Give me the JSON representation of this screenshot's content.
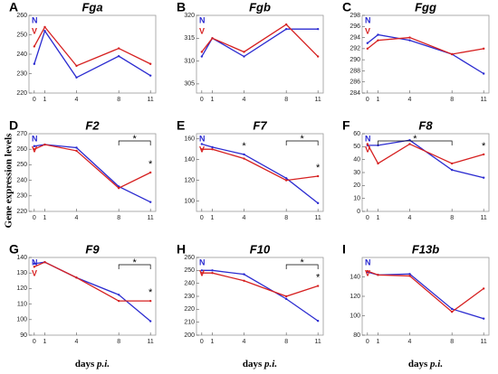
{
  "figure": {
    "ylabel": "Gene expression levels",
    "xlabel_main": "days",
    "xlabel_italic": "p.i."
  },
  "chart_data": [
    {
      "type": "line",
      "panel": "A",
      "title": "Fga",
      "x": [
        0,
        1,
        4,
        8,
        11
      ],
      "xlim": [
        -0.5,
        11.5
      ],
      "xticks": [
        0,
        1,
        4,
        8,
        11
      ],
      "ylim": [
        220,
        260
      ],
      "yticks": [
        220,
        230,
        240,
        250,
        260
      ],
      "series": [
        {
          "name": "N",
          "color": "#2b2bd0",
          "values": [
            235,
            252,
            228,
            239,
            229
          ]
        },
        {
          "name": "V",
          "color": "#d62020",
          "values": [
            244,
            254,
            234,
            243,
            235
          ]
        }
      ],
      "annotations": []
    },
    {
      "type": "line",
      "panel": "B",
      "title": "Fgb",
      "x": [
        0,
        1,
        4,
        8,
        11
      ],
      "xlim": [
        -0.5,
        11.5
      ],
      "xticks": [
        0,
        1,
        4,
        8,
        11
      ],
      "ylim": [
        303,
        320
      ],
      "yticks": [
        305,
        310,
        315,
        320
      ],
      "series": [
        {
          "name": "N",
          "color": "#2b2bd0",
          "values": [
            311,
            315,
            311,
            317,
            317
          ]
        },
        {
          "name": "V",
          "color": "#d62020",
          "values": [
            312,
            315,
            312,
            318,
            311
          ]
        }
      ],
      "annotations": []
    },
    {
      "type": "line",
      "panel": "C",
      "title": "Fgg",
      "x": [
        0,
        1,
        4,
        8,
        11
      ],
      "xlim": [
        -0.5,
        11.5
      ],
      "xticks": [
        0,
        1,
        4,
        8,
        11
      ],
      "ylim": [
        284,
        298
      ],
      "yticks": [
        284,
        286,
        288,
        290,
        292,
        294,
        296,
        298
      ],
      "series": [
        {
          "name": "N",
          "color": "#2b2bd0",
          "values": [
            293,
            294.5,
            293.5,
            291,
            287.5
          ]
        },
        {
          "name": "V",
          "color": "#d62020",
          "values": [
            292,
            293.5,
            294,
            291,
            292
          ]
        }
      ],
      "annotations": []
    },
    {
      "type": "line",
      "panel": "D",
      "title": "F2",
      "x": [
        0,
        1,
        4,
        8,
        11
      ],
      "xlim": [
        -0.5,
        11.5
      ],
      "xticks": [
        0,
        1,
        4,
        8,
        11
      ],
      "ylim": [
        220,
        270
      ],
      "yticks": [
        220,
        230,
        240,
        250,
        260,
        270
      ],
      "series": [
        {
          "name": "N",
          "color": "#2b2bd0",
          "values": [
            262,
            263,
            261,
            236,
            226
          ]
        },
        {
          "name": "V",
          "color": "#d62020",
          "values": [
            260,
            263,
            259,
            235,
            245
          ]
        }
      ],
      "annotations": [
        {
          "label": "*",
          "x": [
            8,
            11
          ]
        },
        {
          "label": "*",
          "x": [
            11
          ]
        }
      ]
    },
    {
      "type": "line",
      "panel": "E",
      "title": "F7",
      "x": [
        0,
        1,
        4,
        8,
        11
      ],
      "xlim": [
        -0.5,
        11.5
      ],
      "xticks": [
        0,
        1,
        4,
        8,
        11
      ],
      "ylim": [
        90,
        165
      ],
      "yticks": [
        100,
        120,
        140,
        160
      ],
      "series": [
        {
          "name": "N",
          "color": "#2b2bd0",
          "values": [
            155,
            152,
            145,
            122,
            98
          ]
        },
        {
          "name": "V",
          "color": "#d62020",
          "values": [
            150,
            150,
            141,
            120,
            124
          ]
        }
      ],
      "annotations": [
        {
          "label": "*",
          "x": [
            8,
            11
          ]
        },
        {
          "label": "*",
          "x": [
            4
          ]
        },
        {
          "label": "*",
          "x": [
            11
          ]
        }
      ]
    },
    {
      "type": "line",
      "panel": "F",
      "title": "F8",
      "x": [
        0,
        1,
        4,
        8,
        11
      ],
      "xlim": [
        -0.5,
        11.5
      ],
      "xticks": [
        0,
        1,
        4,
        8,
        11
      ],
      "ylim": [
        0,
        60
      ],
      "yticks": [
        0,
        10,
        20,
        30,
        40,
        50,
        60
      ],
      "series": [
        {
          "name": "N",
          "color": "#2b2bd0",
          "values": [
            51,
            51,
            55,
            32,
            26
          ]
        },
        {
          "name": "V",
          "color": "#d62020",
          "values": [
            52,
            37,
            52,
            37,
            44
          ]
        }
      ],
      "annotations": [
        {
          "label": "*",
          "x": [
            1,
            8
          ]
        },
        {
          "label": "*",
          "x": [
            11
          ]
        }
      ]
    },
    {
      "type": "line",
      "panel": "G",
      "title": "F9",
      "x": [
        0,
        1,
        4,
        8,
        11
      ],
      "xlim": [
        -0.5,
        11.5
      ],
      "xticks": [
        0,
        1,
        4,
        8,
        11
      ],
      "ylim": [
        90,
        140
      ],
      "yticks": [
        90,
        100,
        110,
        120,
        130,
        140
      ],
      "series": [
        {
          "name": "N",
          "color": "#2b2bd0",
          "values": [
            136,
            137,
            127,
            116,
            99
          ]
        },
        {
          "name": "V",
          "color": "#d62020",
          "values": [
            134,
            137,
            127,
            112,
            112
          ]
        }
      ],
      "annotations": [
        {
          "label": "*",
          "x": [
            8,
            11
          ]
        },
        {
          "label": "*",
          "x": [
            11
          ]
        }
      ]
    },
    {
      "type": "line",
      "panel": "H",
      "title": "F10",
      "x": [
        0,
        1,
        4,
        8,
        11
      ],
      "xlim": [
        -0.5,
        11.5
      ],
      "xticks": [
        0,
        1,
        4,
        8,
        11
      ],
      "ylim": [
        200,
        260
      ],
      "yticks": [
        200,
        210,
        220,
        230,
        240,
        250,
        260
      ],
      "series": [
        {
          "name": "N",
          "color": "#2b2bd0",
          "values": [
            250,
            250,
            247,
            228,
            211
          ]
        },
        {
          "name": "V",
          "color": "#d62020",
          "values": [
            248,
            248,
            242,
            230,
            238
          ]
        }
      ],
      "annotations": [
        {
          "label": "*",
          "x": [
            8,
            11
          ]
        },
        {
          "label": "*",
          "x": [
            11
          ]
        }
      ]
    },
    {
      "type": "line",
      "panel": "I",
      "title": "F13b",
      "x": [
        0,
        1,
        4,
        8,
        11
      ],
      "xlim": [
        -0.5,
        11.5
      ],
      "xticks": [
        0,
        1,
        4,
        8,
        11
      ],
      "ylim": [
        80,
        160
      ],
      "yticks": [
        80,
        100,
        120,
        140
      ],
      "series": [
        {
          "name": "N",
          "color": "#2b2bd0",
          "values": [
            145,
            142,
            143,
            107,
            97
          ]
        },
        {
          "name": "V",
          "color": "#d62020",
          "values": [
            146,
            142,
            141,
            104,
            128
          ]
        }
      ],
      "annotations": []
    }
  ]
}
